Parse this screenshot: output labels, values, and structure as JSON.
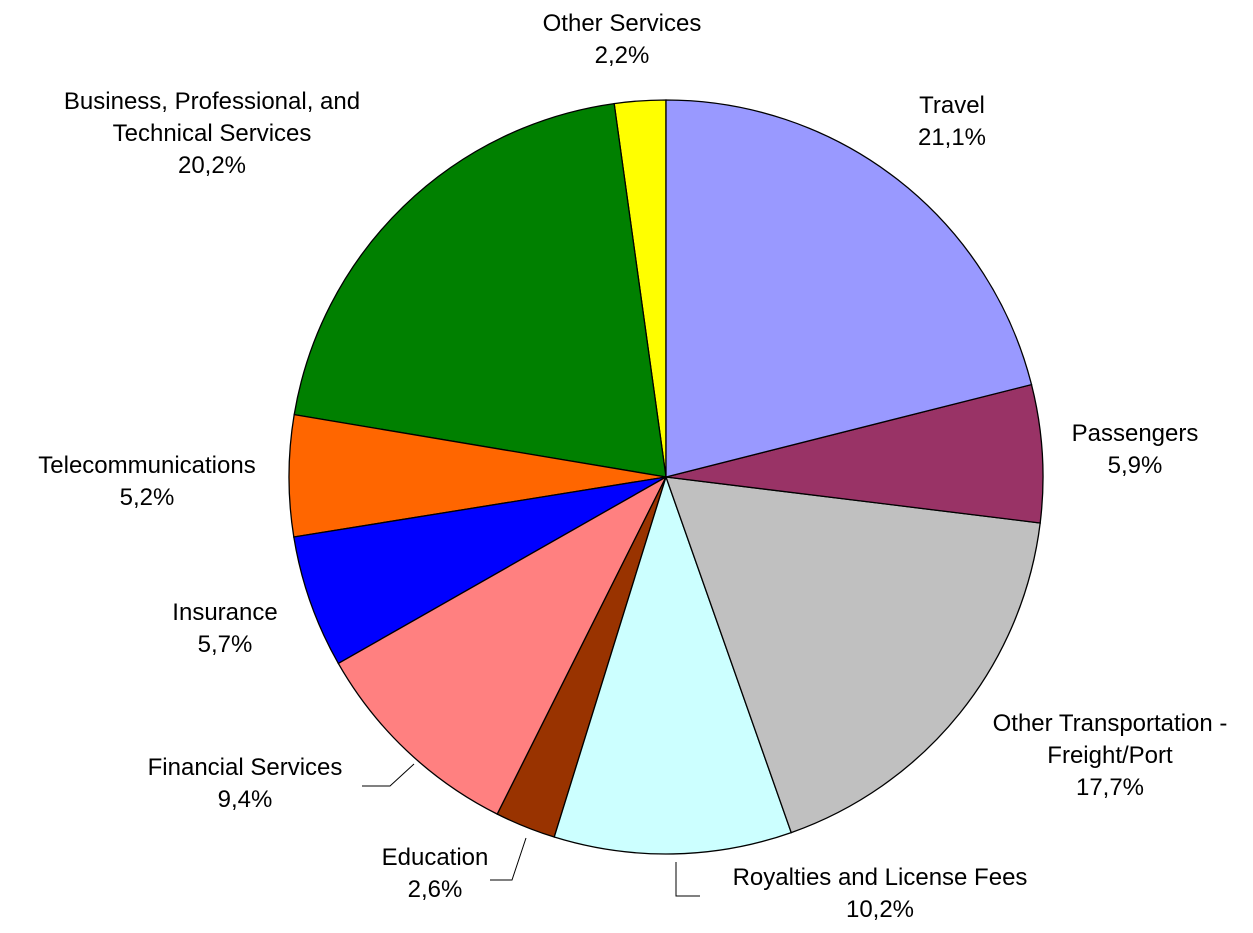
{
  "chart_data": {
    "type": "pie",
    "categories": [
      "Travel",
      "Passengers",
      "Other Transportation - Freight/Port",
      "Royalties and License Fees",
      "Education",
      "Financial Services",
      "Insurance",
      "Telecommunications",
      "Business, Professional, and Technical Services",
      "Other Services"
    ],
    "values": [
      21.1,
      5.9,
      17.7,
      10.2,
      2.6,
      9.4,
      5.7,
      5.2,
      20.2,
      2.2
    ],
    "value_labels": [
      "21,1%",
      "5,9%",
      "17,7%",
      "10,2%",
      "2,6%",
      "9,4%",
      "5,7%",
      "5,2%",
      "20,2%",
      "2,2%"
    ],
    "colors": [
      "#9999ff",
      "#993366",
      "#c0c0c0",
      "#ccffff",
      "#993300",
      "#ff8080",
      "#0000ff",
      "#ff6600",
      "#008000",
      "#ffff00"
    ]
  }
}
